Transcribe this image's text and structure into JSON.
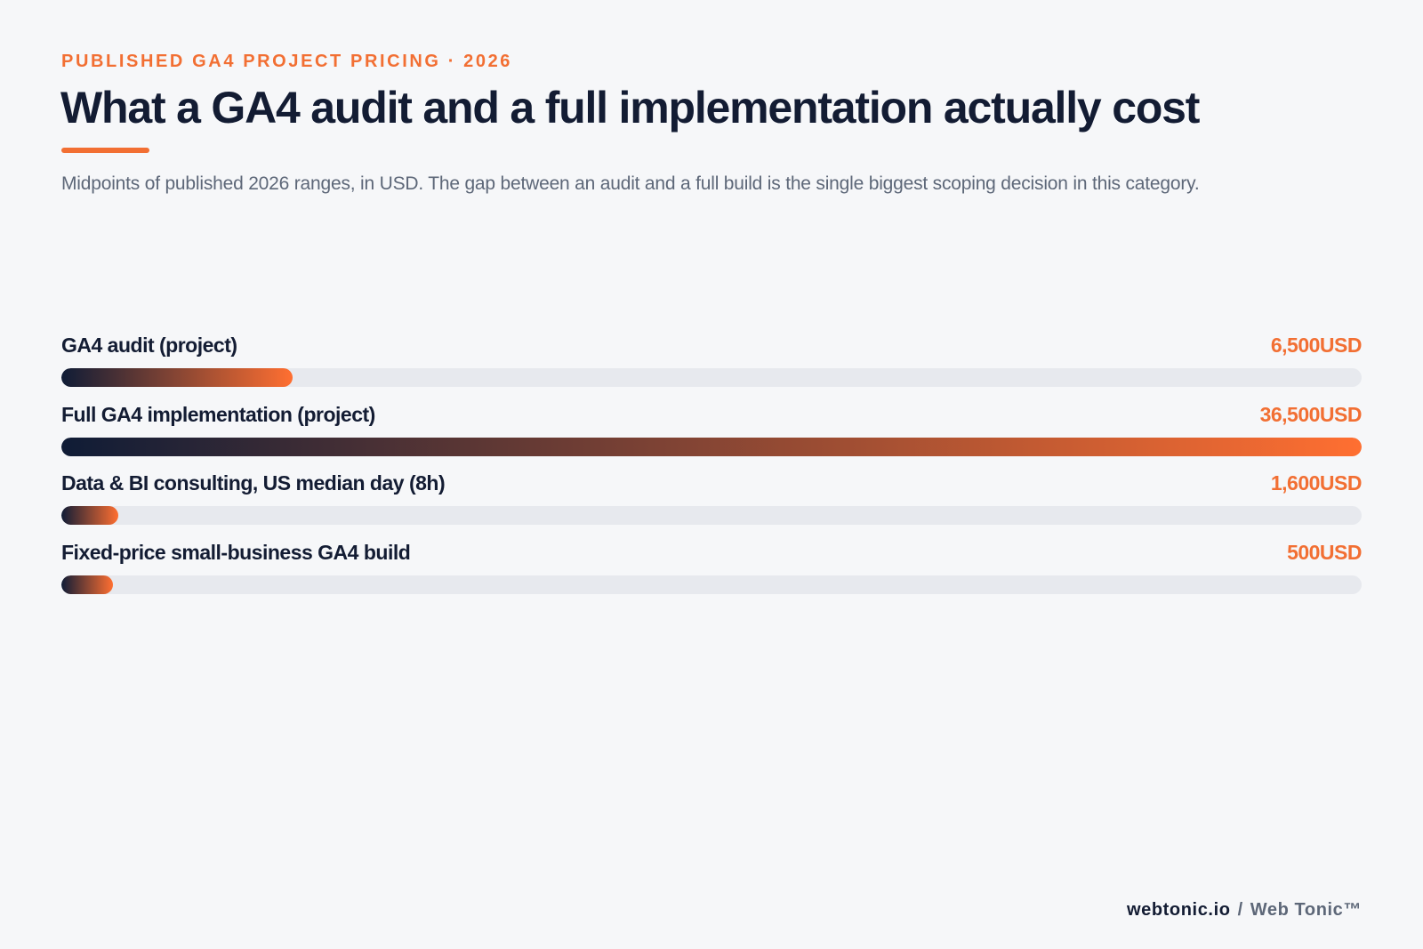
{
  "header": {
    "eyebrow": "PUBLISHED GA4 PROJECT PRICING · 2026",
    "title": "What a GA4 audit and a full implementation actually cost",
    "subtitle": "Midpoints of published 2026 ranges, in USD. The gap between an audit and a full build is the single biggest scoping decision in this category."
  },
  "colors": {
    "accent": "#f26f33",
    "navy": "#131c33",
    "track": "#e7e9ee",
    "gradient_start": "#0f1c36",
    "gradient_end": "#ff6f31"
  },
  "chart_data": {
    "type": "bar",
    "orientation": "horizontal",
    "unit": "USD",
    "xlim": [
      0,
      36500
    ],
    "grid": false,
    "categories": [
      "GA4 audit (project)",
      "Full GA4 implementation (project)",
      "Data & BI consulting, US median day (8h)",
      "Fixed-price small-business GA4 build"
    ],
    "values": [
      6500,
      36500,
      1600,
      500
    ],
    "value_labels": [
      "6,500USD",
      "36,500USD",
      "1,600USD",
      "500USD"
    ]
  },
  "footer": {
    "domain": "webtonic.io",
    "separator": "/",
    "brand": "Web Tonic™"
  }
}
